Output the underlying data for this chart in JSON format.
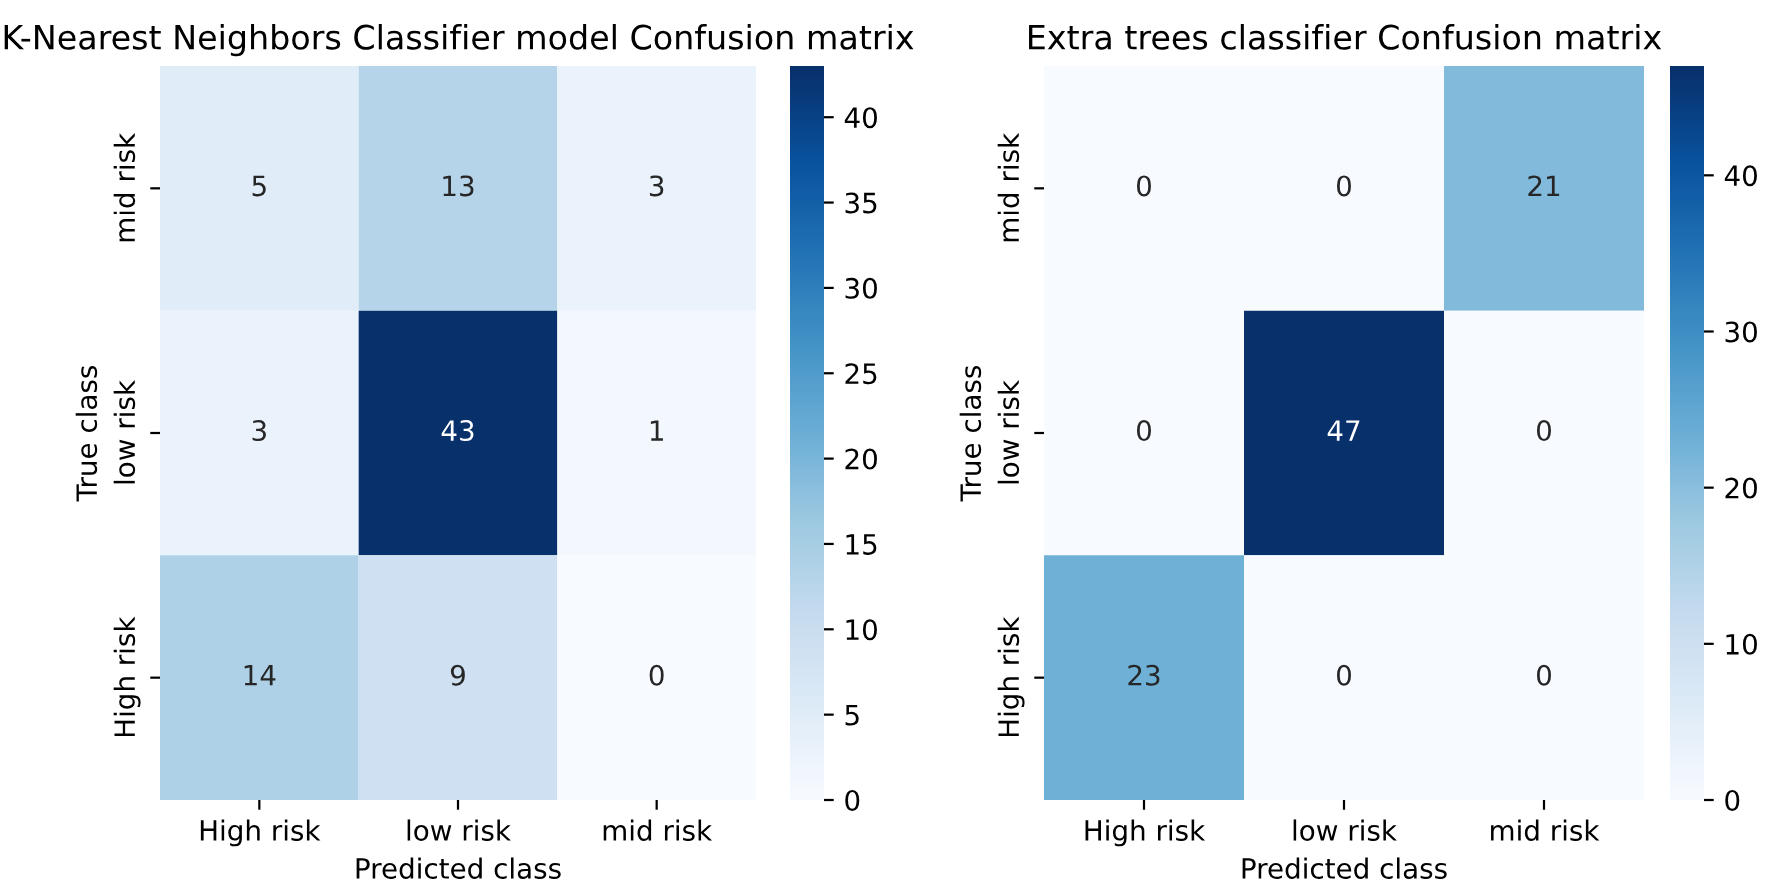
{
  "chart_data": [
    {
      "type": "heatmap",
      "title": "K-Nearest Neighbors Classifier model Confusion matrix",
      "xlabel": "Predicted class",
      "ylabel": "True class",
      "categories": [
        "High risk",
        "low risk",
        "mid risk"
      ],
      "y_categories": [
        "mid risk",
        "low risk",
        "High risk"
      ],
      "cells": [
        [
          5,
          13,
          3
        ],
        [
          3,
          43,
          1
        ],
        [
          14,
          9,
          0
        ]
      ],
      "clim": [
        0,
        43
      ],
      "cticks": [
        0,
        5,
        10,
        15,
        20,
        25,
        30,
        35,
        40
      ],
      "data_labels": true
    },
    {
      "type": "heatmap",
      "title": "Extra trees classifier Confusion matrix",
      "xlabel": "Predicted class",
      "ylabel": "True class",
      "categories": [
        "High risk",
        "low risk",
        "mid risk"
      ],
      "y_categories": [
        "mid risk",
        "low risk",
        "High risk"
      ],
      "cells": [
        [
          0,
          0,
          21
        ],
        [
          0,
          47,
          0
        ],
        [
          23,
          0,
          0
        ]
      ],
      "clim": [
        0,
        47
      ],
      "cticks": [
        0,
        10,
        20,
        30,
        40
      ],
      "data_labels": true
    }
  ]
}
